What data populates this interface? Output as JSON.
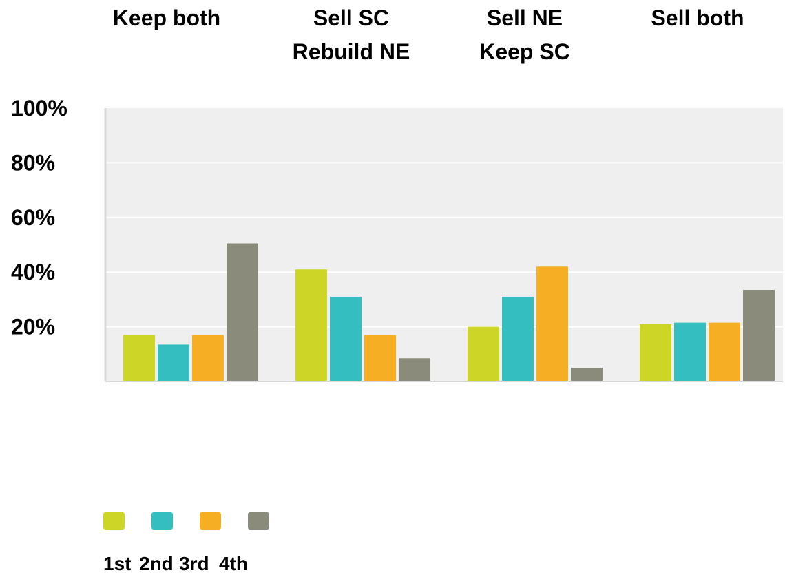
{
  "chart_data": {
    "type": "bar",
    "categories": [
      [
        "Keep both"
      ],
      [
        "Sell SC",
        "Rebuild NE"
      ],
      [
        "Sell NE",
        "Keep SC"
      ],
      [
        "Sell both"
      ]
    ],
    "series": [
      {
        "name": "1st",
        "color": "#cdd527",
        "values": [
          17,
          41,
          20,
          21
        ]
      },
      {
        "name": "2nd",
        "color": "#35bec0",
        "values": [
          13.5,
          31,
          31,
          21.5
        ]
      },
      {
        "name": "3rd",
        "color": "#f6ae25",
        "values": [
          17,
          17,
          42,
          21.5
        ]
      },
      {
        "name": "4th",
        "color": "#8a8b7a",
        "values": [
          50.5,
          8.5,
          5,
          33.5
        ]
      }
    ],
    "ylim": [
      0,
      100
    ],
    "yticks": [
      "100%",
      "80%",
      "60%",
      "40%",
      "20%"
    ],
    "ytick_values": [
      100,
      80,
      60,
      40,
      20
    ],
    "grid": true,
    "legend_position": "bottom-left",
    "plot_background": "#efefef",
    "gridline_color": "#ffffff",
    "axis_color": "#d8d8d8"
  }
}
